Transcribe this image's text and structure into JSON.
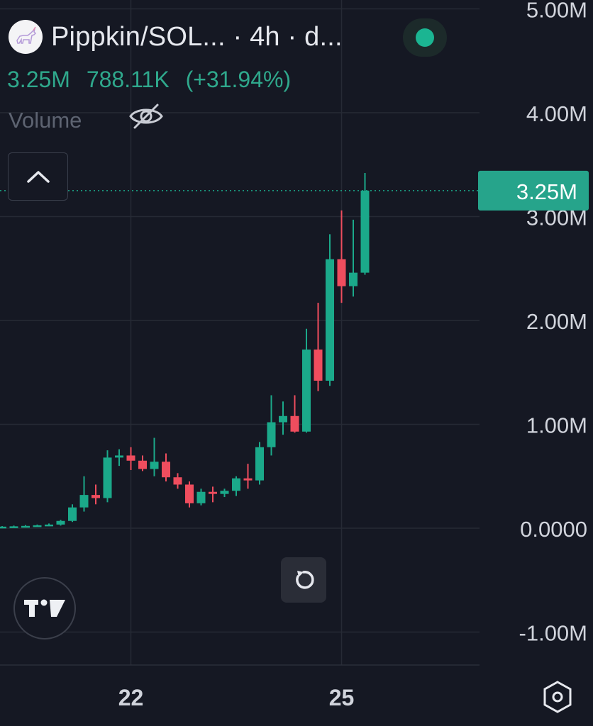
{
  "header": {
    "title": "Pippkin/SOL... · 4h · d...",
    "price": "3.25M",
    "change_abs": "788.11K",
    "change_pct": "(+31.94%)",
    "volume_label": "Volume",
    "status_color": "#1bb592"
  },
  "icons": {
    "avatar": "unicorn-avatar-icon",
    "visibility": "eye-slash-icon",
    "collapse": "chevron-up-icon",
    "reset": "rotate-icon",
    "logo": "tradingview-logo",
    "settings": "hexagon-settings-icon"
  },
  "colors": {
    "background": "#151823",
    "up": "#1ba98a",
    "down": "#ef4d5e",
    "price_label_bg": "#26a48b",
    "grid": "#262a35"
  },
  "chart_data": {
    "type": "candlestick",
    "title": "Pippkin/SOL",
    "interval": "4h",
    "ylim": [
      -1200000,
      5150000
    ],
    "y_ticks": [
      {
        "value": 5000000,
        "label": "5.00M"
      },
      {
        "value": 4000000,
        "label": "4.00M"
      },
      {
        "value": 3000000,
        "label": "3.00M"
      },
      {
        "value": 2000000,
        "label": "2.00M"
      },
      {
        "value": 1000000,
        "label": "1.00M"
      },
      {
        "value": 0,
        "label": "0.0000"
      },
      {
        "value": -1000000,
        "label": "-1.00M"
      }
    ],
    "x_ticks": [
      {
        "index": 11,
        "label": "22"
      },
      {
        "index": 29,
        "label": "25"
      }
    ],
    "last_price": {
      "value": 3250000,
      "label": "3.25M"
    },
    "grid": true,
    "candles": [
      {
        "o": 10000,
        "h": 20000,
        "l": 0,
        "c": 15000
      },
      {
        "o": 15000,
        "h": 25000,
        "l": 5000,
        "c": 18000
      },
      {
        "o": 18000,
        "h": 30000,
        "l": 10000,
        "c": 22000
      },
      {
        "o": 22000,
        "h": 35000,
        "l": 15000,
        "c": 28000
      },
      {
        "o": 28000,
        "h": 45000,
        "l": 20000,
        "c": 35000
      },
      {
        "o": 35000,
        "h": 80000,
        "l": 25000,
        "c": 70000
      },
      {
        "o": 70000,
        "h": 230000,
        "l": 60000,
        "c": 200000
      },
      {
        "o": 200000,
        "h": 500000,
        "l": 160000,
        "c": 320000
      },
      {
        "o": 320000,
        "h": 420000,
        "l": 230000,
        "c": 290000
      },
      {
        "o": 290000,
        "h": 750000,
        "l": 250000,
        "c": 680000
      },
      {
        "o": 680000,
        "h": 760000,
        "l": 600000,
        "c": 700000
      },
      {
        "o": 700000,
        "h": 780000,
        "l": 560000,
        "c": 650000
      },
      {
        "o": 650000,
        "h": 700000,
        "l": 550000,
        "c": 570000
      },
      {
        "o": 570000,
        "h": 870000,
        "l": 500000,
        "c": 640000
      },
      {
        "o": 640000,
        "h": 720000,
        "l": 450000,
        "c": 490000
      },
      {
        "o": 490000,
        "h": 530000,
        "l": 380000,
        "c": 420000
      },
      {
        "o": 420000,
        "h": 450000,
        "l": 200000,
        "c": 240000
      },
      {
        "o": 240000,
        "h": 380000,
        "l": 220000,
        "c": 350000
      },
      {
        "o": 350000,
        "h": 400000,
        "l": 250000,
        "c": 330000
      },
      {
        "o": 330000,
        "h": 380000,
        "l": 300000,
        "c": 360000
      },
      {
        "o": 360000,
        "h": 500000,
        "l": 310000,
        "c": 480000
      },
      {
        "o": 480000,
        "h": 620000,
        "l": 380000,
        "c": 460000
      },
      {
        "o": 460000,
        "h": 830000,
        "l": 420000,
        "c": 780000
      },
      {
        "o": 780000,
        "h": 1280000,
        "l": 700000,
        "c": 1020000
      },
      {
        "o": 1020000,
        "h": 1220000,
        "l": 900000,
        "c": 1080000
      },
      {
        "o": 1080000,
        "h": 1280000,
        "l": 920000,
        "c": 930000
      },
      {
        "o": 930000,
        "h": 1920000,
        "l": 920000,
        "c": 1720000
      },
      {
        "o": 1720000,
        "h": 2170000,
        "l": 1320000,
        "c": 1420000
      },
      {
        "o": 1420000,
        "h": 2830000,
        "l": 1370000,
        "c": 2590000
      },
      {
        "o": 2590000,
        "h": 3060000,
        "l": 2170000,
        "c": 2330000
      },
      {
        "o": 2330000,
        "h": 2970000,
        "l": 2230000,
        "c": 2460000
      },
      {
        "o": 2460000,
        "h": 3420000,
        "l": 2440000,
        "c": 3250000
      }
    ]
  }
}
